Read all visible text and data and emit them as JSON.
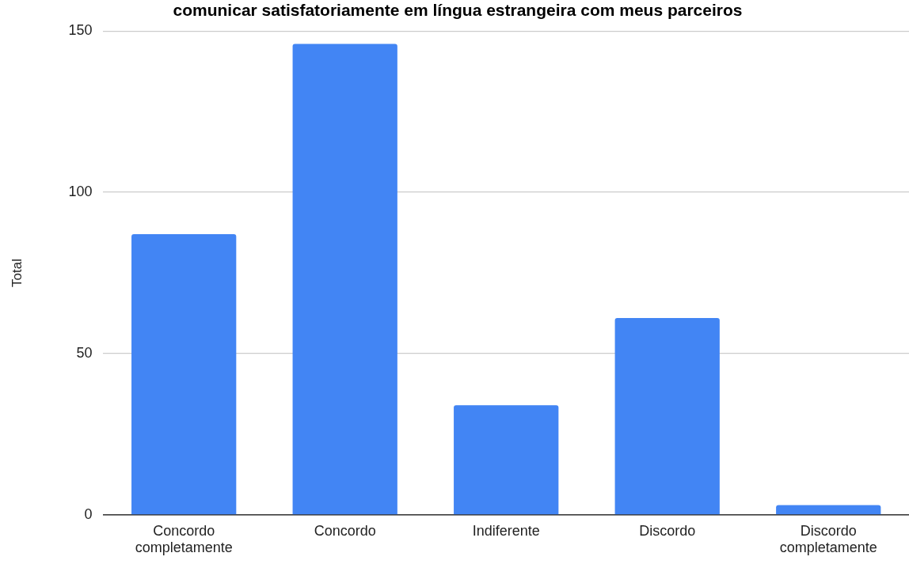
{
  "chart_data": {
    "type": "bar",
    "title": "comunicar satisfatoriamente em língua estrangeira com meus parceiros",
    "ylabel": "Total",
    "categories": [
      "Concordo completamente",
      "Concordo",
      "Indiferente",
      "Discordo",
      "Discordo completamente"
    ],
    "values": [
      87,
      146,
      34,
      61,
      3
    ],
    "color": "#4285f4",
    "ylim": [
      0,
      150
    ],
    "yticks": [
      0,
      50,
      100,
      150
    ],
    "grid": "y",
    "legend": false
  }
}
